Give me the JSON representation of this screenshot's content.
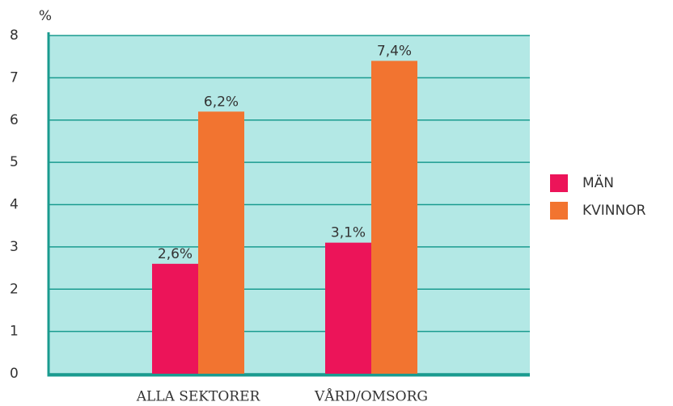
{
  "chart_data": {
    "type": "bar",
    "y_label": "%",
    "categories": [
      "ALLA SEKTORER",
      "VÅRD/OMSORG"
    ],
    "series": [
      {
        "name": "MÄN",
        "color": "#ec1459",
        "values": [
          2.6,
          3.1
        ],
        "value_labels": [
          "2,6%",
          "3,1%"
        ]
      },
      {
        "name": "KVINNOR",
        "color": "#f27430",
        "values": [
          6.2,
          7.4
        ],
        "value_labels": [
          "6,2%",
          "7,4%"
        ]
      }
    ],
    "ylim": [
      0,
      8
    ],
    "yticks": [
      0,
      1,
      2,
      3,
      4,
      5,
      6,
      7,
      8
    ],
    "grid": true,
    "legend": "right",
    "plot_background": "#b3e8e5",
    "grid_color": "#1a9b8f"
  }
}
